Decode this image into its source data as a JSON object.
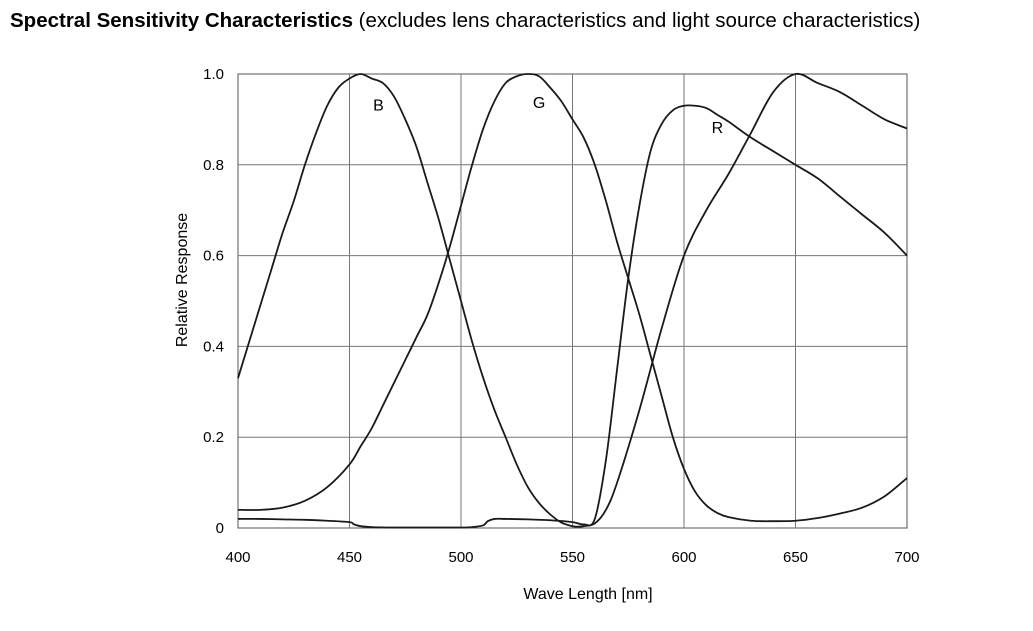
{
  "page": {
    "title_bold": "Spectral Sensitivity Characteristics",
    "title_rest": " (excludes lens characteristics and light source characteristics)"
  },
  "chart_data": {
    "type": "line",
    "xlabel": "Wave Length [nm]",
    "ylabel": "Relative Response",
    "xlim": [
      400,
      700
    ],
    "ylim": [
      0,
      1.0
    ],
    "xticks": [
      400,
      450,
      500,
      550,
      600,
      650,
      700
    ],
    "yticks": [
      0,
      0.2,
      0.4,
      0.6,
      0.8,
      1.0
    ],
    "ytick_labels": [
      "0",
      "0.2",
      "0.4",
      "0.6",
      "0.8",
      "1.0"
    ],
    "grid": true,
    "line_color": "#1a1a1a",
    "series": [
      {
        "name": "B",
        "label_at": [
          463,
          0.92
        ],
        "x": [
          400,
          405,
          410,
          415,
          420,
          425,
          430,
          435,
          440,
          445,
          450,
          455,
          460,
          465,
          470,
          475,
          480,
          485,
          490,
          495,
          500,
          505,
          510,
          515,
          520,
          525,
          530,
          535,
          540,
          545,
          550,
          552,
          555,
          560,
          565,
          570,
          580,
          590,
          600,
          610,
          620,
          630,
          640,
          650,
          660,
          670,
          680,
          690,
          700
        ],
        "y": [
          0.33,
          0.41,
          0.49,
          0.57,
          0.65,
          0.72,
          0.8,
          0.87,
          0.93,
          0.97,
          0.99,
          1.0,
          0.99,
          0.98,
          0.95,
          0.9,
          0.84,
          0.76,
          0.68,
          0.59,
          0.5,
          0.41,
          0.33,
          0.26,
          0.2,
          0.14,
          0.09,
          0.055,
          0.03,
          0.012,
          0.004,
          0.003,
          0.004,
          0.01,
          0.04,
          0.1,
          0.26,
          0.44,
          0.6,
          0.7,
          0.78,
          0.87,
          0.96,
          1.0,
          0.98,
          0.96,
          0.93,
          0.9,
          0.88
        ]
      },
      {
        "name": "G",
        "label_at": [
          535,
          0.925
        ],
        "x": [
          400,
          410,
          420,
          430,
          440,
          450,
          455,
          460,
          465,
          470,
          475,
          480,
          485,
          490,
          495,
          500,
          505,
          510,
          515,
          520,
          525,
          530,
          535,
          540,
          545,
          550,
          555,
          560,
          565,
          570,
          575,
          580,
          585,
          590,
          595,
          600,
          605,
          610,
          615,
          620,
          630,
          640,
          650,
          660,
          670,
          680,
          690,
          700
        ],
        "y": [
          0.04,
          0.04,
          0.045,
          0.06,
          0.09,
          0.14,
          0.18,
          0.22,
          0.27,
          0.32,
          0.37,
          0.42,
          0.47,
          0.54,
          0.62,
          0.71,
          0.8,
          0.88,
          0.94,
          0.98,
          0.995,
          1.0,
          0.995,
          0.97,
          0.94,
          0.9,
          0.86,
          0.8,
          0.72,
          0.63,
          0.55,
          0.47,
          0.38,
          0.29,
          0.2,
          0.13,
          0.08,
          0.05,
          0.033,
          0.024,
          0.016,
          0.015,
          0.016,
          0.022,
          0.032,
          0.045,
          0.07,
          0.11
        ]
      },
      {
        "name": "R",
        "label_at": [
          615,
          0.87
        ],
        "x": [
          400,
          410,
          420,
          430,
          440,
          450,
          452,
          455,
          460,
          470,
          480,
          490,
          500,
          505,
          510,
          512,
          515,
          520,
          530,
          540,
          550,
          555,
          560,
          565,
          570,
          575,
          580,
          585,
          590,
          595,
          600,
          605,
          610,
          615,
          620,
          630,
          640,
          650,
          660,
          670,
          675,
          680,
          690,
          700
        ],
        "y": [
          0.02,
          0.02,
          0.019,
          0.018,
          0.016,
          0.013,
          0.008,
          0.004,
          0.002,
          0.001,
          0.001,
          0.001,
          0.001,
          0.002,
          0.006,
          0.015,
          0.02,
          0.02,
          0.019,
          0.017,
          0.013,
          0.008,
          0.02,
          0.15,
          0.35,
          0.55,
          0.71,
          0.83,
          0.89,
          0.92,
          0.93,
          0.93,
          0.925,
          0.91,
          0.895,
          0.86,
          0.83,
          0.8,
          0.77,
          0.73,
          0.71,
          0.69,
          0.65,
          0.6
        ]
      }
    ]
  }
}
